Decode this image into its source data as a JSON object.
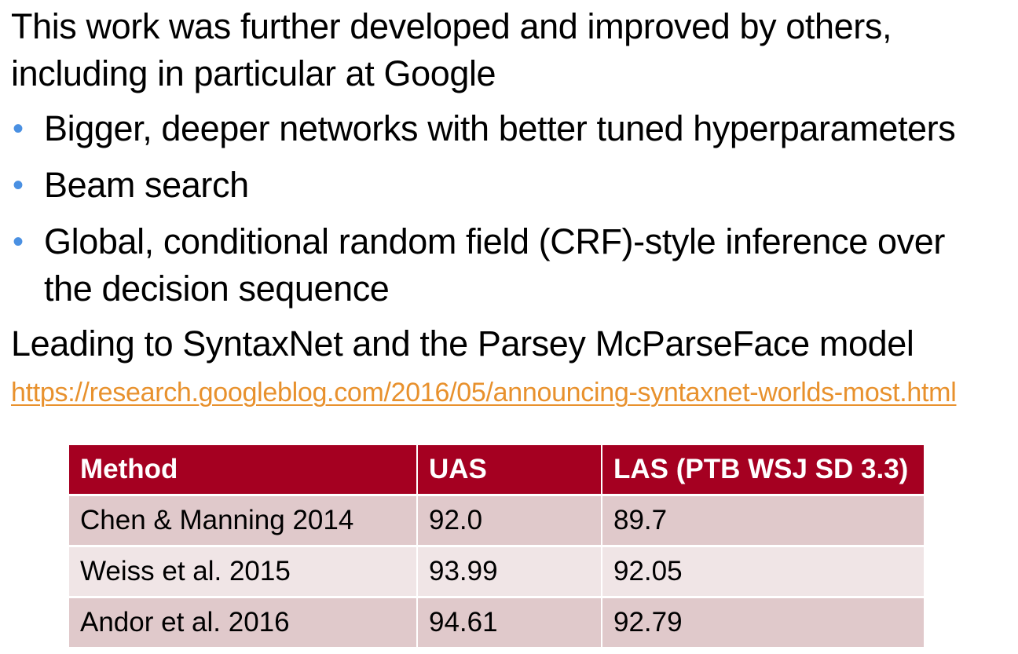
{
  "slide": {
    "intro_line1": "This work was further developed and improved by others,",
    "intro_line2": "including in particular at Google",
    "bullets": [
      {
        "line1": "Bigger, deeper networks with better tuned hyperparameters",
        "line2": ""
      },
      {
        "line1": "Beam search",
        "line2": ""
      },
      {
        "line1": "Global, conditional random field (CRF)-style inference over",
        "line2": "the decision sequence"
      }
    ],
    "bullet_symbol": "•",
    "conclusion": "Leading to SyntaxNet and the Parsey McParseFace model",
    "link": "https://research.googleblog.com/2016/05/announcing-syntaxnet-worlds-most.html"
  },
  "table": {
    "headers": [
      "Method",
      "UAS",
      "LAS (PTB WSJ SD 3.3)"
    ],
    "rows": [
      [
        "Chen & Manning 2014",
        "92.0",
        "89.7"
      ],
      [
        "Weiss et al. 2015",
        "93.99",
        "92.05"
      ],
      [
        "Andor et al. 2016",
        "94.61",
        "92.79"
      ]
    ]
  },
  "colors": {
    "bullet": "#4a90e2",
    "link": "#e8912d",
    "header_bg": "#a50021",
    "row_dark": "#e0c9cb",
    "row_light": "#f0e5e6"
  }
}
